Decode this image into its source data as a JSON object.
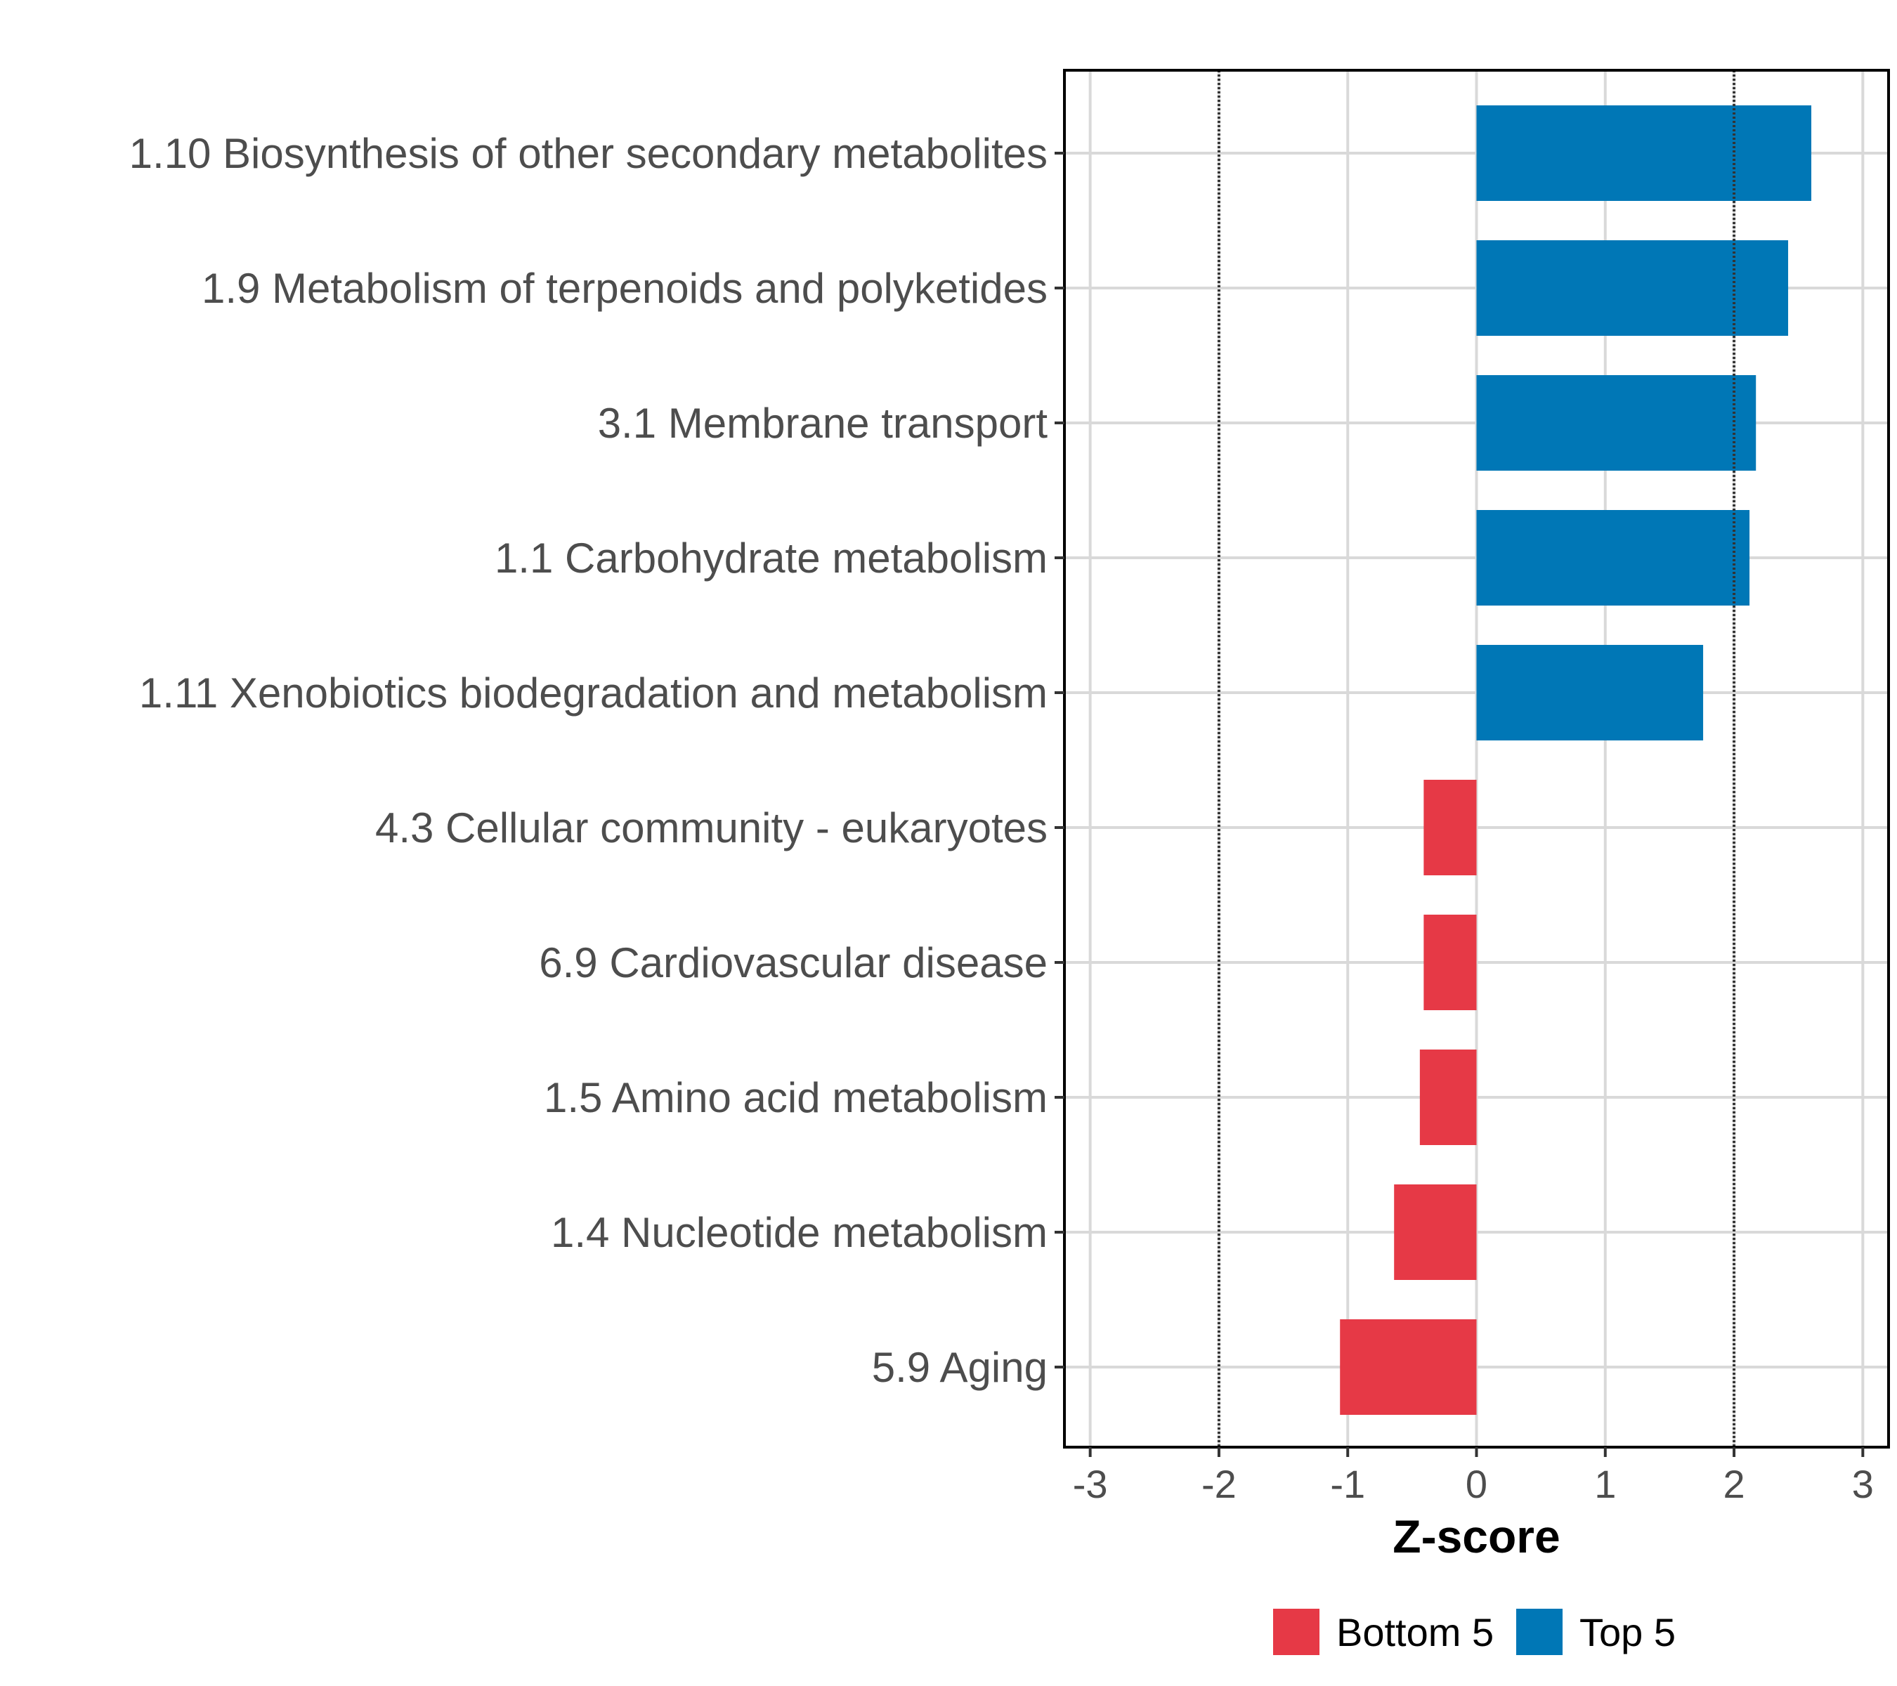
{
  "chart_data": {
    "type": "bar",
    "orientation": "horizontal",
    "title": "",
    "xlabel": "Z-score",
    "ylabel": "",
    "xlim": [
      -3.2,
      3.2
    ],
    "xticks": [
      -3,
      -2,
      -1,
      0,
      1,
      2,
      3
    ],
    "xtick_labels": [
      "-3",
      "-2",
      "-1",
      "0",
      "1",
      "2",
      "3"
    ],
    "reference_lines": [
      -2,
      2
    ],
    "grid": true,
    "legend_position": "bottom",
    "colors": {
      "Bottom 5": "#e63946",
      "Top 5": "#0077b6"
    },
    "legend": [
      {
        "label": "Bottom 5",
        "color": "#e63946"
      },
      {
        "label": "Top 5",
        "color": "#0077b6"
      }
    ],
    "categories": [
      "1.10 Biosynthesis of other secondary metabolites",
      "1.9 Metabolism of terpenoids and polyketides",
      "3.1 Membrane transport",
      "1.1 Carbohydrate metabolism",
      "1.11 Xenobiotics biodegradation and metabolism",
      "4.3 Cellular community - eukaryotes",
      "6.9 Cardiovascular disease",
      "1.5 Amino acid metabolism",
      "1.4 Nucleotide metabolism",
      "5.9 Aging"
    ],
    "values": [
      2.6,
      2.42,
      2.17,
      2.12,
      1.76,
      -0.41,
      -0.41,
      -0.44,
      -0.64,
      -1.06
    ],
    "groups": [
      "Top 5",
      "Top 5",
      "Top 5",
      "Top 5",
      "Top 5",
      "Bottom 5",
      "Bottom 5",
      "Bottom 5",
      "Bottom 5",
      "Bottom 5"
    ]
  }
}
